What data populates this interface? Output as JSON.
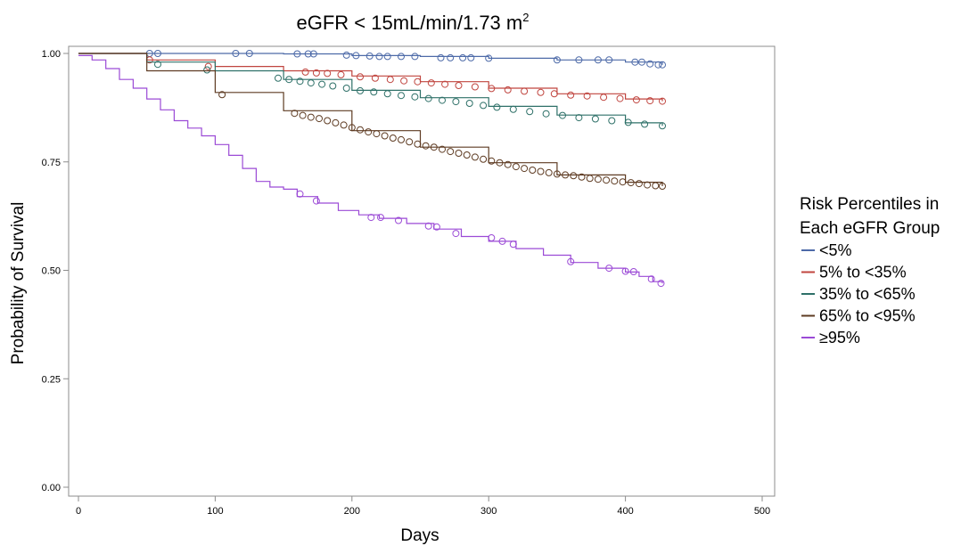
{
  "chart_data": {
    "type": "line",
    "title": "eGFR < 15mL/min/1.73 m",
    "title_superscript": "2",
    "xlabel": "Days",
    "ylabel": "Probability of Survival",
    "xlim": [
      0,
      500
    ],
    "ylim": [
      0,
      1
    ],
    "x_ticks": [
      0,
      100,
      200,
      300,
      400,
      500
    ],
    "y_ticks": [
      0,
      0.25,
      0.5,
      0.75,
      1.0
    ],
    "x_tick_labels": [
      "0",
      "100",
      "200",
      "300",
      "400",
      "500"
    ],
    "y_tick_labels": [
      "0.00",
      "0.25",
      "0.50",
      "0.75",
      "1.00"
    ],
    "grid": false,
    "legend_position": "right",
    "legend_title": [
      "Risk Percentiles in",
      "Each eGFR Group"
    ],
    "series": [
      {
        "name": "<5%",
        "color": "#4d6aa8",
        "points": [
          [
            0,
            1.0
          ],
          [
            100,
            1.0
          ],
          [
            150,
            0.999
          ],
          [
            200,
            0.995
          ],
          [
            250,
            0.993
          ],
          [
            300,
            0.989
          ],
          [
            350,
            0.985
          ],
          [
            400,
            0.98
          ],
          [
            427,
            0.974
          ]
        ],
        "censored": [
          [
            52,
            1.0
          ],
          [
            58,
            1.0
          ],
          [
            115,
            1.0
          ],
          [
            125,
            1.0
          ],
          [
            160,
            0.999
          ],
          [
            168,
            0.999
          ],
          [
            172,
            0.999
          ],
          [
            196,
            0.996
          ],
          [
            203,
            0.995
          ],
          [
            213,
            0.994
          ],
          [
            220,
            0.993
          ],
          [
            226,
            0.993
          ],
          [
            236,
            0.993
          ],
          [
            246,
            0.993
          ],
          [
            265,
            0.99
          ],
          [
            272,
            0.99
          ],
          [
            281,
            0.99
          ],
          [
            287,
            0.99
          ],
          [
            300,
            0.989
          ],
          [
            350,
            0.985
          ],
          [
            366,
            0.985
          ],
          [
            380,
            0.985
          ],
          [
            388,
            0.985
          ],
          [
            407,
            0.98
          ],
          [
            412,
            0.98
          ],
          [
            418,
            0.976
          ],
          [
            424,
            0.974
          ],
          [
            427,
            0.974
          ]
        ]
      },
      {
        "name": "5% to <35%",
        "color": "#c0453f",
        "points": [
          [
            0,
            1.0
          ],
          [
            50,
            0.985
          ],
          [
            100,
            0.97
          ],
          [
            150,
            0.96
          ],
          [
            200,
            0.948
          ],
          [
            250,
            0.935
          ],
          [
            300,
            0.92
          ],
          [
            350,
            0.907
          ],
          [
            400,
            0.895
          ],
          [
            427,
            0.89
          ]
        ],
        "censored": [
          [
            52,
            0.985
          ],
          [
            95,
            0.97
          ],
          [
            166,
            0.957
          ],
          [
            174,
            0.955
          ],
          [
            182,
            0.954
          ],
          [
            192,
            0.951
          ],
          [
            206,
            0.946
          ],
          [
            217,
            0.943
          ],
          [
            228,
            0.94
          ],
          [
            238,
            0.937
          ],
          [
            248,
            0.935
          ],
          [
            258,
            0.932
          ],
          [
            268,
            0.929
          ],
          [
            278,
            0.926
          ],
          [
            290,
            0.923
          ],
          [
            302,
            0.919
          ],
          [
            314,
            0.916
          ],
          [
            326,
            0.913
          ],
          [
            338,
            0.91
          ],
          [
            348,
            0.907
          ],
          [
            360,
            0.904
          ],
          [
            372,
            0.902
          ],
          [
            384,
            0.899
          ],
          [
            396,
            0.896
          ],
          [
            408,
            0.893
          ],
          [
            418,
            0.891
          ],
          [
            427,
            0.89
          ]
        ]
      },
      {
        "name": "35% to <65%",
        "color": "#2e7068",
        "points": [
          [
            0,
            1.0
          ],
          [
            50,
            0.98
          ],
          [
            100,
            0.96
          ],
          [
            150,
            0.94
          ],
          [
            200,
            0.915
          ],
          [
            250,
            0.898
          ],
          [
            300,
            0.878
          ],
          [
            350,
            0.858
          ],
          [
            400,
            0.84
          ],
          [
            427,
            0.833
          ]
        ],
        "censored": [
          [
            58,
            0.975
          ],
          [
            94,
            0.962
          ],
          [
            146,
            0.943
          ],
          [
            154,
            0.94
          ],
          [
            162,
            0.936
          ],
          [
            170,
            0.932
          ],
          [
            178,
            0.929
          ],
          [
            186,
            0.925
          ],
          [
            196,
            0.92
          ],
          [
            206,
            0.914
          ],
          [
            216,
            0.911
          ],
          [
            226,
            0.907
          ],
          [
            236,
            0.903
          ],
          [
            246,
            0.9
          ],
          [
            256,
            0.896
          ],
          [
            266,
            0.892
          ],
          [
            276,
            0.889
          ],
          [
            286,
            0.885
          ],
          [
            296,
            0.88
          ],
          [
            306,
            0.876
          ],
          [
            318,
            0.871
          ],
          [
            330,
            0.866
          ],
          [
            342,
            0.861
          ],
          [
            354,
            0.857
          ],
          [
            366,
            0.852
          ],
          [
            378,
            0.849
          ],
          [
            390,
            0.845
          ],
          [
            402,
            0.841
          ],
          [
            414,
            0.837
          ],
          [
            427,
            0.833
          ]
        ]
      },
      {
        "name": "65% to <95%",
        "color": "#5e3b22",
        "points": [
          [
            0,
            1.0
          ],
          [
            50,
            0.96
          ],
          [
            100,
            0.91
          ],
          [
            150,
            0.868
          ],
          [
            200,
            0.822
          ],
          [
            250,
            0.784
          ],
          [
            300,
            0.748
          ],
          [
            350,
            0.72
          ],
          [
            400,
            0.703
          ],
          [
            427,
            0.694
          ]
        ],
        "censored": [
          [
            105,
            0.905
          ],
          [
            158,
            0.862
          ],
          [
            164,
            0.857
          ],
          [
            170,
            0.853
          ],
          [
            176,
            0.85
          ],
          [
            182,
            0.845
          ],
          [
            188,
            0.84
          ],
          [
            194,
            0.835
          ],
          [
            200,
            0.829
          ],
          [
            206,
            0.824
          ],
          [
            212,
            0.819
          ],
          [
            218,
            0.815
          ],
          [
            224,
            0.81
          ],
          [
            230,
            0.805
          ],
          [
            236,
            0.801
          ],
          [
            242,
            0.796
          ],
          [
            248,
            0.791
          ],
          [
            254,
            0.787
          ],
          [
            260,
            0.784
          ],
          [
            266,
            0.779
          ],
          [
            272,
            0.774
          ],
          [
            278,
            0.77
          ],
          [
            284,
            0.766
          ],
          [
            290,
            0.761
          ],
          [
            296,
            0.756
          ],
          [
            302,
            0.752
          ],
          [
            308,
            0.748
          ],
          [
            314,
            0.744
          ],
          [
            320,
            0.739
          ],
          [
            326,
            0.735
          ],
          [
            332,
            0.731
          ],
          [
            338,
            0.728
          ],
          [
            344,
            0.725
          ],
          [
            350,
            0.722
          ],
          [
            356,
            0.72
          ],
          [
            362,
            0.718
          ],
          [
            368,
            0.715
          ],
          [
            374,
            0.712
          ],
          [
            380,
            0.71
          ],
          [
            386,
            0.708
          ],
          [
            392,
            0.706
          ],
          [
            398,
            0.704
          ],
          [
            404,
            0.702
          ],
          [
            410,
            0.7
          ],
          [
            416,
            0.697
          ],
          [
            422,
            0.695
          ],
          [
            427,
            0.694
          ]
        ]
      },
      {
        "name": "≥95%",
        "color": "#9b4ad6",
        "points": [
          [
            0,
            0.995
          ],
          [
            10,
            0.985
          ],
          [
            20,
            0.965
          ],
          [
            30,
            0.94
          ],
          [
            40,
            0.92
          ],
          [
            50,
            0.895
          ],
          [
            60,
            0.87
          ],
          [
            70,
            0.845
          ],
          [
            80,
            0.828
          ],
          [
            90,
            0.81
          ],
          [
            100,
            0.79
          ],
          [
            110,
            0.765
          ],
          [
            120,
            0.735
          ],
          [
            130,
            0.705
          ],
          [
            140,
            0.692
          ],
          [
            150,
            0.687
          ],
          [
            160,
            0.67
          ],
          [
            175,
            0.655
          ],
          [
            190,
            0.638
          ],
          [
            205,
            0.628
          ],
          [
            220,
            0.62
          ],
          [
            240,
            0.608
          ],
          [
            260,
            0.595
          ],
          [
            280,
            0.578
          ],
          [
            300,
            0.567
          ],
          [
            320,
            0.55
          ],
          [
            340,
            0.535
          ],
          [
            360,
            0.518
          ],
          [
            380,
            0.505
          ],
          [
            400,
            0.496
          ],
          [
            410,
            0.486
          ],
          [
            420,
            0.474
          ],
          [
            427,
            0.47
          ]
        ],
        "censored": [
          [
            162,
            0.676
          ],
          [
            174,
            0.66
          ],
          [
            214,
            0.622
          ],
          [
            221,
            0.622
          ],
          [
            234,
            0.615
          ],
          [
            256,
            0.602
          ],
          [
            262,
            0.6
          ],
          [
            276,
            0.585
          ],
          [
            302,
            0.575
          ],
          [
            310,
            0.567
          ],
          [
            318,
            0.56
          ],
          [
            360,
            0.52
          ],
          [
            388,
            0.505
          ],
          [
            400,
            0.498
          ],
          [
            406,
            0.497
          ],
          [
            419,
            0.48
          ],
          [
            426,
            0.47
          ]
        ]
      }
    ]
  }
}
